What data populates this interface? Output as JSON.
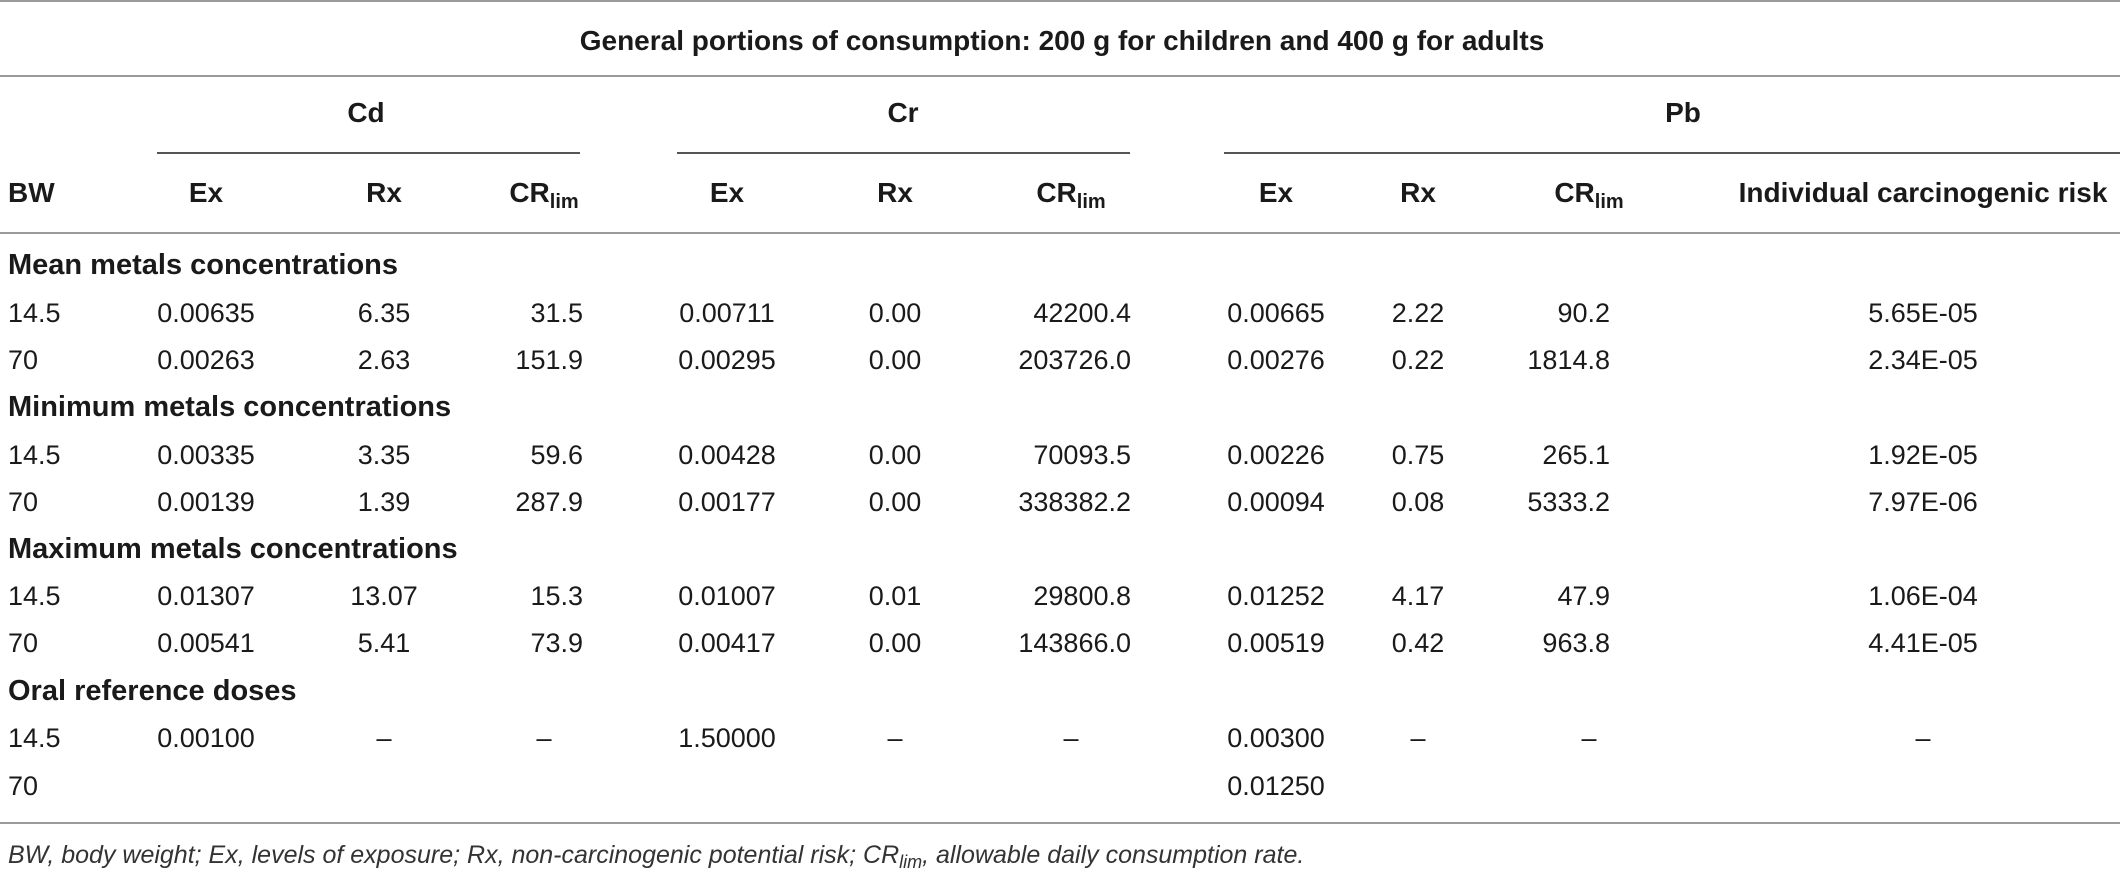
{
  "title": "General portions of consumption: 200 g for children and 400 g for adults",
  "groups": {
    "cd": "Cd",
    "cr": "Cr",
    "pb": "Pb"
  },
  "columns": {
    "bw": "BW",
    "ex": "Ex",
    "rx": "Rx",
    "cr_main": "CR",
    "cr_sub": "lim",
    "icr": "Individual carcinogenic risk"
  },
  "sections": [
    {
      "title": "Mean metals concentrations",
      "rows": [
        {
          "bw": "14.5",
          "cd_ex": "0.00635",
          "cd_rx": "6.35",
          "cd_cr": "31.5",
          "cr_ex": "0.00711",
          "cr_rx": "0.00",
          "cr_cr": "42200.4",
          "pb_ex": "0.00665",
          "pb_rx": "2.22",
          "pb_cr": "90.2",
          "icr": "5.65E-05"
        },
        {
          "bw": "70",
          "cd_ex": "0.00263",
          "cd_rx": "2.63",
          "cd_cr": "151.9",
          "cr_ex": "0.00295",
          "cr_rx": "0.00",
          "cr_cr": "203726.0",
          "pb_ex": "0.00276",
          "pb_rx": "0.22",
          "pb_cr": "1814.8",
          "icr": "2.34E-05"
        }
      ]
    },
    {
      "title": "Minimum metals concentrations",
      "rows": [
        {
          "bw": "14.5",
          "cd_ex": "0.00335",
          "cd_rx": "3.35",
          "cd_cr": "59.6",
          "cr_ex": "0.00428",
          "cr_rx": "0.00",
          "cr_cr": "70093.5",
          "pb_ex": "0.00226",
          "pb_rx": "0.75",
          "pb_cr": "265.1",
          "icr": "1.92E-05"
        },
        {
          "bw": "70",
          "cd_ex": "0.00139",
          "cd_rx": "1.39",
          "cd_cr": "287.9",
          "cr_ex": "0.00177",
          "cr_rx": "0.00",
          "cr_cr": "338382.2",
          "pb_ex": "0.00094",
          "pb_rx": "0.08",
          "pb_cr": "5333.2",
          "icr": "7.97E-06"
        }
      ]
    },
    {
      "title": "Maximum metals concentrations",
      "rows": [
        {
          "bw": "14.5",
          "cd_ex": "0.01307",
          "cd_rx": "13.07",
          "cd_cr": "15.3",
          "cr_ex": "0.01007",
          "cr_rx": "0.01",
          "cr_cr": "29800.8",
          "pb_ex": "0.01252",
          "pb_rx": "4.17",
          "pb_cr": "47.9",
          "icr": "1.06E-04"
        },
        {
          "bw": "70",
          "cd_ex": "0.00541",
          "cd_rx": "5.41",
          "cd_cr": "73.9",
          "cr_ex": "0.00417",
          "cr_rx": "0.00",
          "cr_cr": "143866.0",
          "pb_ex": "0.00519",
          "pb_rx": "0.42",
          "pb_cr": "963.8",
          "icr": "4.41E-05"
        }
      ]
    },
    {
      "title": "Oral reference doses",
      "rows": [
        {
          "bw": "14.5",
          "cd_ex": "0.00100",
          "cd_rx": "–",
          "cd_cr": "–",
          "cr_ex": "1.50000",
          "cr_rx": "–",
          "cr_cr": "–",
          "pb_ex": "0.00300",
          "pb_rx": "–",
          "pb_cr": "–",
          "icr": "–"
        },
        {
          "bw": "70",
          "cd_ex": "",
          "cd_rx": "",
          "cd_cr": "",
          "cr_ex": "",
          "cr_rx": "",
          "cr_cr": "",
          "pb_ex": "0.01250",
          "pb_rx": "",
          "pb_cr": "",
          "icr": ""
        }
      ]
    }
  ],
  "footnote": {
    "part1": "BW, body weight; Ex, levels of exposure; Rx, non-carcinogenic potential risk; CR",
    "sub": "lim",
    "part2": ", allowable daily consumption rate."
  }
}
